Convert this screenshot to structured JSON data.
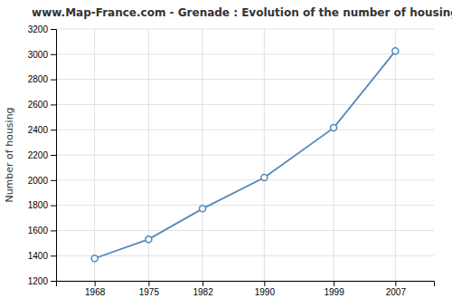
{
  "chart_data": {
    "type": "line",
    "title": "www.Map-France.com - Grenade : Evolution of the number of housing",
    "ylabel": "Number of housing",
    "x": [
      1968,
      1975,
      1982,
      1990,
      1999,
      2007
    ],
    "values": [
      1378,
      1530,
      1773,
      2020,
      2415,
      3025
    ],
    "color": "#5588bb",
    "marker": "circle",
    "xlim": [
      1963,
      2012
    ],
    "xticks": [
      1968,
      1975,
      1982,
      1990,
      1999,
      2007
    ],
    "ylim": [
      1200,
      3200
    ],
    "yticks": [
      1200,
      1400,
      1600,
      1800,
      2000,
      2200,
      2400,
      2600,
      2800,
      3000,
      3200
    ],
    "grid": true
  }
}
